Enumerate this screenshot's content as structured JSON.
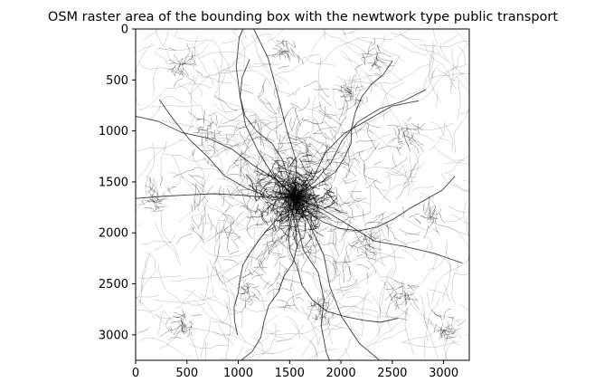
{
  "chart_data": {
    "type": "heatmap",
    "title": "OSM raster area of the bounding box with the newtwork type public transport",
    "xlabel": "",
    "ylabel": "",
    "colormap": "binary (white = no network, black = network)",
    "xlim": [
      0,
      3250
    ],
    "ylim": [
      3250,
      0
    ],
    "x_ticks": [
      0,
      500,
      1000,
      1500,
      2000,
      2500,
      3000
    ],
    "y_ticks": [
      0,
      500,
      1000,
      1500,
      2000,
      2500,
      3000
    ],
    "x_tick_labels": [
      "0",
      "500",
      "1000",
      "1500",
      "2000",
      "2500",
      "3000"
    ],
    "y_tick_labels": [
      "0",
      "500",
      "1000",
      "1500",
      "2000",
      "2500",
      "3000"
    ],
    "dense_core_center": [
      1550,
      1650
    ],
    "grid": false,
    "legend": "none"
  },
  "colors": {
    "network": "#000000",
    "background": "#ffffff",
    "axes": "#000000"
  }
}
